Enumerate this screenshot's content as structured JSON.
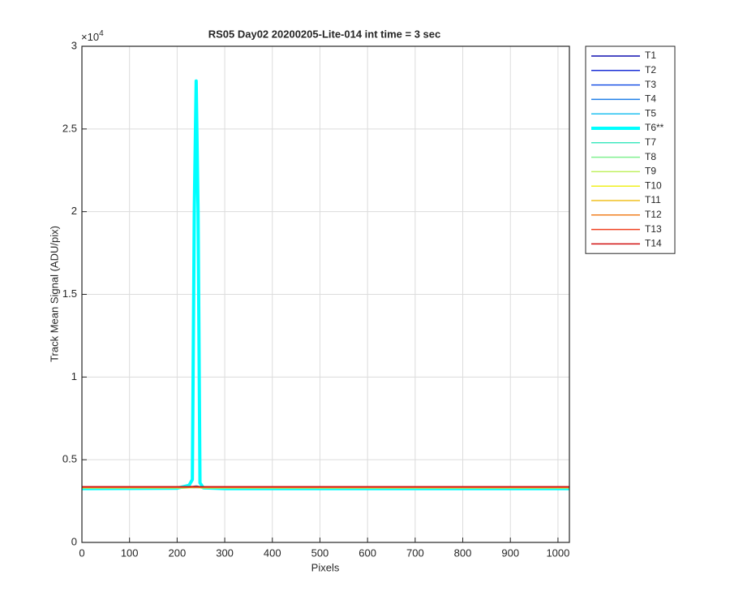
{
  "chart_data": {
    "type": "line",
    "title": "RS05 Day02 20200205-Lite-014 int time = 3 sec",
    "x_label": "Pixels",
    "y_label": "Track Mean Signal (ADU/pix)",
    "y_exponent_label": "×10",
    "y_exponent": "4",
    "x": [
      0,
      200,
      225,
      232,
      236,
      240,
      244,
      248,
      255,
      300,
      1024
    ],
    "xlim": [
      0,
      1024
    ],
    "xticks": [
      0,
      100,
      200,
      300,
      400,
      500,
      600,
      700,
      800,
      900,
      1000
    ],
    "ylim": [
      0,
      30000
    ],
    "yticks": [
      0,
      {
        "value": 5000,
        "label": "0.5"
      },
      {
        "value": 10000,
        "label": "1"
      },
      {
        "value": 15000,
        "label": "1.5"
      },
      {
        "value": 20000,
        "label": "2"
      },
      {
        "value": 25000,
        "label": "2.5"
      },
      {
        "value": 30000,
        "label": "3"
      }
    ],
    "grid": true,
    "legend": "outside-right",
    "series": [
      {
        "name": "T1",
        "color": "#1010b0",
        "values": [
          3320,
          3320,
          3330,
          3330,
          3330,
          3330,
          3330,
          3330,
          3320,
          3320,
          3320
        ]
      },
      {
        "name": "T2",
        "color": "#1a2fd6",
        "values": [
          3310,
          3310,
          3320,
          3320,
          3320,
          3320,
          3320,
          3320,
          3310,
          3310,
          3310
        ]
      },
      {
        "name": "T3",
        "color": "#1f55e6",
        "values": [
          3300,
          3300,
          3310,
          3310,
          3320,
          3320,
          3320,
          3310,
          3300,
          3300,
          3300
        ]
      },
      {
        "name": "T4",
        "color": "#2080e8",
        "values": [
          3290,
          3290,
          3300,
          3310,
          3320,
          3330,
          3320,
          3300,
          3290,
          3290,
          3290
        ]
      },
      {
        "name": "T5",
        "color": "#20c0f0",
        "values": [
          3280,
          3280,
          3320,
          3360,
          3400,
          3420,
          3400,
          3330,
          3280,
          3280,
          3280
        ]
      },
      {
        "name": "T6**",
        "color": "#00ffff",
        "width": 4,
        "values": [
          3250,
          3280,
          3450,
          3800,
          20000,
          27900,
          20000,
          3600,
          3300,
          3250,
          3250
        ]
      },
      {
        "name": "T7",
        "color": "#40e8c0",
        "values": [
          3270,
          3270,
          3300,
          3330,
          3360,
          3380,
          3360,
          3310,
          3270,
          3270,
          3270
        ]
      },
      {
        "name": "T8",
        "color": "#80f090",
        "values": [
          3290,
          3290,
          3300,
          3310,
          3320,
          3330,
          3320,
          3300,
          3290,
          3290,
          3290
        ]
      },
      {
        "name": "T9",
        "color": "#c0f060",
        "values": [
          3300,
          3300,
          3310,
          3310,
          3320,
          3320,
          3320,
          3310,
          3300,
          3300,
          3300
        ]
      },
      {
        "name": "T10",
        "color": "#f0f020",
        "values": [
          3310,
          3310,
          3310,
          3320,
          3320,
          3320,
          3320,
          3310,
          3310,
          3310,
          3310
        ]
      },
      {
        "name": "T11",
        "color": "#f0c020",
        "values": [
          3320,
          3320,
          3320,
          3330,
          3330,
          3330,
          3330,
          3320,
          3320,
          3320,
          3320
        ]
      },
      {
        "name": "T12",
        "color": "#f08020",
        "values": [
          3330,
          3330,
          3330,
          3340,
          3340,
          3340,
          3340,
          3330,
          3330,
          3330,
          3330
        ]
      },
      {
        "name": "T13",
        "color": "#f04020",
        "values": [
          3350,
          3350,
          3350,
          3360,
          3360,
          3360,
          3360,
          3350,
          3350,
          3350,
          3350
        ]
      },
      {
        "name": "T14",
        "color": "#d01010",
        "values": [
          3370,
          3370,
          3370,
          3380,
          3380,
          3380,
          3380,
          3370,
          3370,
          3370,
          3370
        ]
      }
    ]
  }
}
